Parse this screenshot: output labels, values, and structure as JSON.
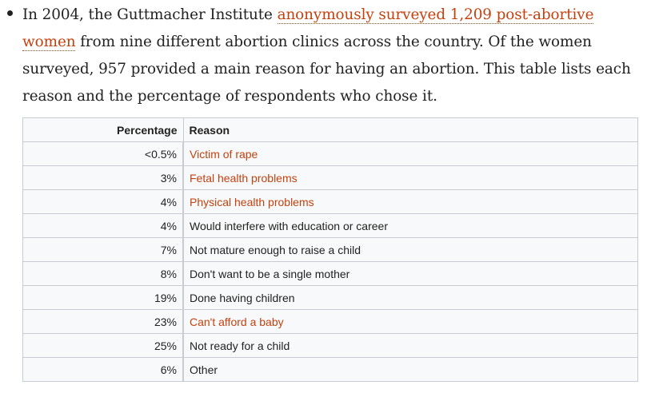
{
  "paragraph": {
    "text_before": "In 2004, the Guttmacher Institute ",
    "link_text": "anonymously surveyed 1,209 post-abortive women",
    "text_after": " from nine different abortion clinics across the country. Of the women surveyed, 957 provided a main reason for having an abortion. This table lists each reason and the percentage of respondents who chose it."
  },
  "table": {
    "headers": {
      "percentage": "Percentage",
      "reason": "Reason"
    },
    "rows": [
      {
        "percentage": "<0.5%",
        "reason": "Victim of rape",
        "is_link": true
      },
      {
        "percentage": "3%",
        "reason": "Fetal health problems",
        "is_link": true
      },
      {
        "percentage": "4%",
        "reason": "Physical health problems",
        "is_link": true
      },
      {
        "percentage": "4%",
        "reason": "Would interfere with education or career",
        "is_link": false
      },
      {
        "percentage": "7%",
        "reason": "Not mature enough to raise a child",
        "is_link": false
      },
      {
        "percentage": "8%",
        "reason": "Don't want to be a single mother",
        "is_link": false
      },
      {
        "percentage": "19%",
        "reason": "Done having children",
        "is_link": false
      },
      {
        "percentage": "23%",
        "reason": "Can't afford a baby",
        "is_link": true
      },
      {
        "percentage": "25%",
        "reason": "Not ready for a child",
        "is_link": false
      },
      {
        "percentage": "6%",
        "reason": "Other",
        "is_link": false
      }
    ]
  },
  "colors": {
    "link": "#c4410f",
    "text": "#222222",
    "border": "#c8ccd1",
    "table_bg": "#f8f9fa"
  }
}
